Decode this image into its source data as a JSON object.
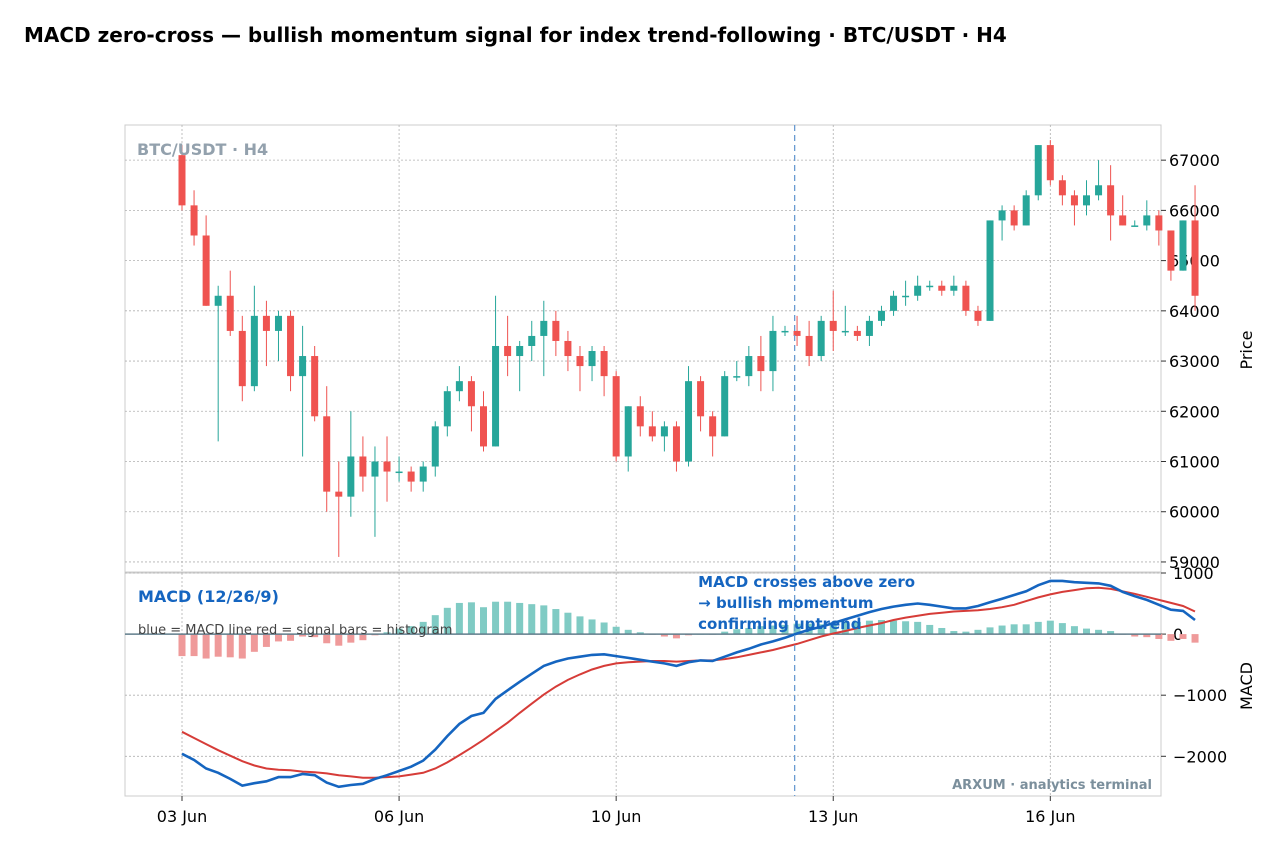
{
  "chart_data": {
    "type": "candlestick",
    "title": "MACD zero-cross — bullish momentum signal for index trend-following  ·  BTC/USDT · H4",
    "watermark": "BTC/USDT · H4",
    "brand": "ARXUM · analytics terminal",
    "price_ylabel": "Price",
    "price_ylim": [
      58800,
      67700
    ],
    "price_ticks": [
      59000,
      60000,
      61000,
      62000,
      63000,
      64000,
      65000,
      66000,
      67000
    ],
    "x_tick_labels": [
      {
        "i": 0,
        "label": "03 Jun"
      },
      {
        "i": 18,
        "label": "06 Jun"
      },
      {
        "i": 36,
        "label": "10 Jun"
      },
      {
        "i": 54,
        "label": "13 Jun"
      },
      {
        "i": 72,
        "label": "16 Jun"
      }
    ],
    "candles": [
      [
        67100,
        67300,
        66000,
        66100
      ],
      [
        66100,
        66400,
        65300,
        65500
      ],
      [
        65500,
        65900,
        64100,
        64100
      ],
      [
        64100,
        64500,
        61400,
        64300
      ],
      [
        64300,
        64800,
        63500,
        63600
      ],
      [
        63600,
        63900,
        62200,
        62500
      ],
      [
        62500,
        64500,
        62400,
        63900
      ],
      [
        63900,
        64200,
        62900,
        63600
      ],
      [
        63600,
        64000,
        63000,
        63900
      ],
      [
        63900,
        64000,
        62400,
        62700
      ],
      [
        62700,
        63700,
        61100,
        63100
      ],
      [
        63100,
        63300,
        61800,
        61900
      ],
      [
        61900,
        62500,
        60000,
        60400
      ],
      [
        60400,
        61000,
        59100,
        60300
      ],
      [
        60300,
        62000,
        59900,
        61100
      ],
      [
        61100,
        61500,
        60400,
        60700
      ],
      [
        60700,
        61300,
        59500,
        61000
      ],
      [
        61000,
        61500,
        60200,
        60800
      ],
      [
        60800,
        61100,
        60600,
        60800
      ],
      [
        60800,
        60900,
        60400,
        60600
      ],
      [
        60600,
        61000,
        60400,
        60900
      ],
      [
        60900,
        61800,
        60700,
        61700
      ],
      [
        61700,
        62500,
        61500,
        62400
      ],
      [
        62400,
        62900,
        62200,
        62600
      ],
      [
        62600,
        62700,
        61600,
        62100
      ],
      [
        62100,
        62400,
        61200,
        61300
      ],
      [
        61300,
        64300,
        61300,
        63300
      ],
      [
        63300,
        63900,
        62700,
        63100
      ],
      [
        63100,
        63400,
        62400,
        63300
      ],
      [
        63300,
        63800,
        63000,
        63500
      ],
      [
        63500,
        64200,
        62700,
        63800
      ],
      [
        63800,
        64000,
        63100,
        63400
      ],
      [
        63400,
        63600,
        62800,
        63100
      ],
      [
        63100,
        63300,
        62400,
        62900
      ],
      [
        62900,
        63300,
        62600,
        63200
      ],
      [
        63200,
        63300,
        62300,
        62700
      ],
      [
        62700,
        62800,
        61000,
        61100
      ],
      [
        61100,
        62100,
        60800,
        62100
      ],
      [
        62100,
        62300,
        61500,
        61700
      ],
      [
        61700,
        62000,
        61400,
        61500
      ],
      [
        61500,
        61800,
        61200,
        61700
      ],
      [
        61700,
        61800,
        60800,
        61000
      ],
      [
        61000,
        62900,
        60900,
        62600
      ],
      [
        62600,
        62700,
        61600,
        61900
      ],
      [
        61900,
        62000,
        61100,
        61500
      ],
      [
        61500,
        62800,
        61500,
        62700
      ],
      [
        62700,
        63000,
        62600,
        62700
      ],
      [
        62700,
        63300,
        62500,
        63100
      ],
      [
        63100,
        63500,
        62400,
        62800
      ],
      [
        62800,
        63900,
        62400,
        63600
      ],
      [
        63600,
        63700,
        63500,
        63600
      ],
      [
        63600,
        63900,
        63300,
        63500
      ],
      [
        63500,
        63800,
        62900,
        63100
      ],
      [
        63100,
        63900,
        63000,
        63800
      ],
      [
        63800,
        64400,
        63200,
        63600
      ],
      [
        63600,
        64100,
        63500,
        63600
      ],
      [
        63600,
        63700,
        63400,
        63500
      ],
      [
        63500,
        63900,
        63300,
        63800
      ],
      [
        63800,
        64100,
        63700,
        64000
      ],
      [
        64000,
        64400,
        63900,
        64300
      ],
      [
        64300,
        64600,
        64100,
        64300
      ],
      [
        64300,
        64700,
        64200,
        64500
      ],
      [
        64500,
        64600,
        64400,
        64500
      ],
      [
        64500,
        64600,
        64300,
        64400
      ],
      [
        64400,
        64700,
        64300,
        64500
      ],
      [
        64500,
        64600,
        63900,
        64000
      ],
      [
        64000,
        64100,
        63700,
        63800
      ],
      [
        63800,
        65800,
        63800,
        65800
      ],
      [
        65800,
        66100,
        65400,
        66000
      ],
      [
        66000,
        66100,
        65600,
        65700
      ],
      [
        65700,
        66400,
        65700,
        66300
      ],
      [
        66300,
        67300,
        66200,
        67300
      ],
      [
        67300,
        67400,
        66500,
        66600
      ],
      [
        66600,
        66700,
        66100,
        66300
      ],
      [
        66300,
        66400,
        65700,
        66100
      ],
      [
        66100,
        66600,
        65900,
        66300
      ],
      [
        66300,
        67000,
        66200,
        66500
      ],
      [
        66500,
        66900,
        65400,
        65900
      ],
      [
        65900,
        66300,
        65700,
        65700
      ],
      [
        65700,
        65800,
        65700,
        65700
      ],
      [
        65700,
        66200,
        65600,
        65900
      ],
      [
        65900,
        66000,
        65300,
        65600
      ],
      [
        65600,
        65600,
        64600,
        64800
      ],
      [
        64800,
        65800,
        64800,
        65800
      ],
      [
        65800,
        66500,
        64000,
        64300
      ]
    ],
    "macd_title": "MACD (12/26/9)",
    "macd_legend": "blue = MACD line   red = signal   bars = histogram",
    "macd_ylabel": "MACD",
    "macd_ylim": [
      -2650,
      1000
    ],
    "macd_ticks": [
      1000,
      0,
      -1000,
      -2000
    ],
    "macd_tick_labels": [
      "1000",
      "0",
      "−1000",
      "−2000"
    ],
    "macd_line": [
      -1960,
      -2060,
      -2200,
      -2270,
      -2370,
      -2480,
      -2440,
      -2410,
      -2340,
      -2340,
      -2290,
      -2310,
      -2430,
      -2500,
      -2470,
      -2450,
      -2370,
      -2310,
      -2240,
      -2170,
      -2070,
      -1890,
      -1670,
      -1470,
      -1340,
      -1290,
      -1060,
      -920,
      -780,
      -650,
      -520,
      -450,
      -400,
      -370,
      -340,
      -330,
      -360,
      -390,
      -420,
      -450,
      -480,
      -520,
      -460,
      -430,
      -440,
      -370,
      -300,
      -240,
      -170,
      -120,
      -60,
      10,
      70,
      120,
      180,
      240,
      300,
      360,
      410,
      450,
      480,
      500,
      480,
      450,
      420,
      420,
      460,
      520,
      580,
      640,
      700,
      800,
      870,
      870,
      850,
      840,
      830,
      790,
      690,
      620,
      560,
      480,
      400,
      380,
      230
    ],
    "signal_line": [
      -1600,
      -1700,
      -1800,
      -1900,
      -1990,
      -2080,
      -2150,
      -2200,
      -2220,
      -2230,
      -2250,
      -2260,
      -2280,
      -2310,
      -2330,
      -2350,
      -2350,
      -2340,
      -2330,
      -2300,
      -2270,
      -2200,
      -2100,
      -1980,
      -1860,
      -1730,
      -1590,
      -1450,
      -1290,
      -1140,
      -990,
      -860,
      -750,
      -660,
      -580,
      -520,
      -480,
      -460,
      -450,
      -440,
      -440,
      -450,
      -440,
      -430,
      -430,
      -410,
      -380,
      -340,
      -300,
      -260,
      -210,
      -160,
      -100,
      -40,
      10,
      50,
      100,
      140,
      180,
      230,
      270,
      300,
      330,
      350,
      370,
      380,
      390,
      410,
      440,
      480,
      540,
      600,
      650,
      690,
      720,
      750,
      760,
      740,
      700,
      660,
      610,
      560,
      510,
      460,
      370
    ],
    "annotation": {
      "lines": [
        "MACD crosses above zero",
        "→ bullish momentum",
        "confirming uptrend"
      ],
      "index": 50.8
    },
    "colors": {
      "up": "#26a69a",
      "down": "#ef5350",
      "macd": "#1565c0",
      "signal": "#d63c38",
      "hist_pos": "#80cbc4",
      "hist_neg": "#ef9a9a",
      "grid": "#b0b0b0",
      "zero": "#607d8b",
      "marker": "#6a9bd1"
    }
  }
}
